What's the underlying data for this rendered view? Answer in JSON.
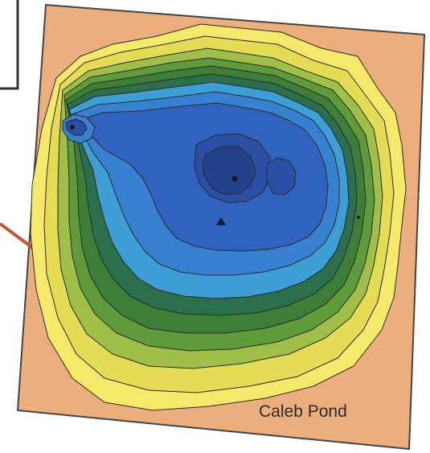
{
  "map": {
    "title": "Caleb Pond",
    "colors": {
      "land": "#ecae7c",
      "frame_border": "#444444",
      "contour_line": "#2a2a2a",
      "callout_line": "#c0563a",
      "depth_bands": [
        "#f4e96a",
        "#e5dc55",
        "#9fbf49",
        "#5f9a3b",
        "#3d7e39",
        "#2b6f4d",
        "#3e9fd6",
        "#3781d0",
        "#2f63bf",
        "#2a4fa5",
        "#24428c"
      ]
    },
    "deep_spot_markers": [
      "deep-spot-marker-west",
      "deep-spot-marker-center",
      "deep-spot-marker-south",
      "deep-spot-marker-east"
    ]
  }
}
